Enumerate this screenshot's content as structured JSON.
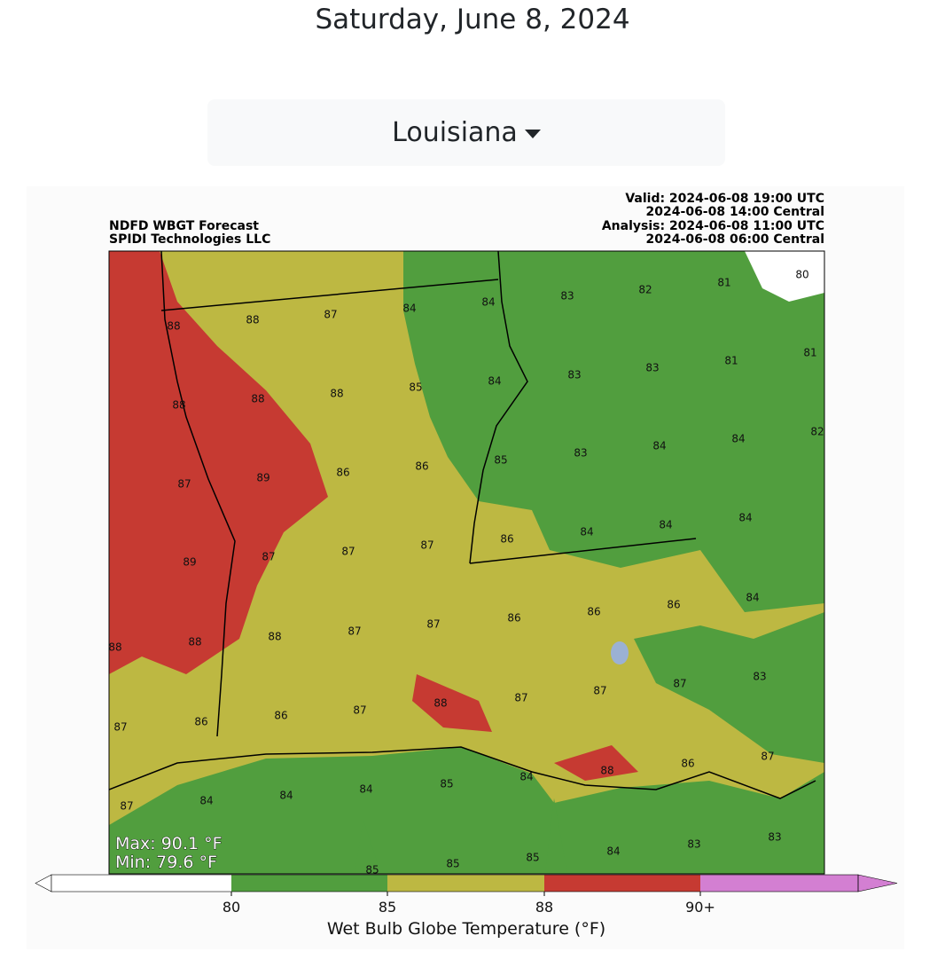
{
  "header": {
    "date": "Saturday, June 8, 2024"
  },
  "dropdown": {
    "label": "Louisiana"
  },
  "map": {
    "title_left": [
      "NDFD WBGT Forecast",
      "SPIDI Technologies LLC"
    ],
    "title_right": [
      "Valid: 2024-06-08 19:00 UTC",
      "2024-06-08 14:00 Central",
      "Analysis: 2024-06-08 11:00 UTC",
      "2024-06-08 06:00 Central"
    ],
    "max": "Max: 90.1 °F",
    "min": "Min: 79.6 °F",
    "labels": [
      88,
      88,
      87,
      84,
      84,
      83,
      82,
      81,
      80,
      88,
      88,
      88,
      85,
      84,
      83,
      83,
      81,
      81,
      87,
      89,
      86,
      86,
      85,
      83,
      84,
      84,
      82,
      89,
      87,
      87,
      87,
      86,
      84,
      84,
      84,
      88,
      88,
      88,
      87,
      87,
      86,
      86,
      86,
      84,
      87,
      86,
      86,
      87,
      88,
      87,
      87,
      87,
      83,
      87,
      84,
      84,
      84,
      85,
      84,
      88,
      86,
      87,
      85,
      85,
      85,
      84,
      83,
      83
    ]
  },
  "colorbar": {
    "label": "Wet Bulb Globe Temperature (°F)",
    "ticks": [
      "80",
      "85",
      "88",
      "90+"
    ],
    "colors": [
      "#ffffff",
      "#519e3e",
      "#bdb842",
      "#c63a32",
      "#d37fd2"
    ]
  }
}
